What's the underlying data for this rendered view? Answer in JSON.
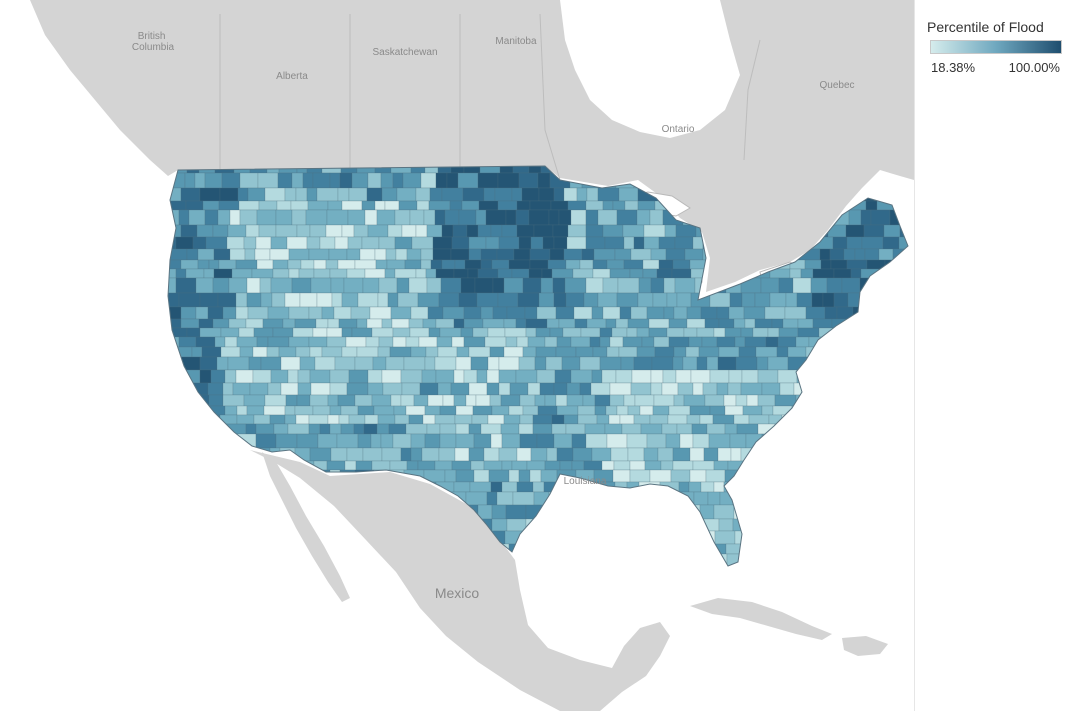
{
  "legend": {
    "title": "Percentile of Flood",
    "min_label": "18.38%",
    "max_label": "100.00%",
    "min_color": "#d5ecec",
    "max_color": "#1f4e6f"
  },
  "place_labels": [
    {
      "id": "british-columbia",
      "lines": [
        "British",
        "Columbia"
      ]
    },
    {
      "id": "alberta",
      "lines": [
        "Alberta"
      ]
    },
    {
      "id": "saskatchewan",
      "lines": [
        "Saskatchewan"
      ]
    },
    {
      "id": "manitoba",
      "lines": [
        "Manitoba"
      ]
    },
    {
      "id": "ontario",
      "lines": [
        "Ontario"
      ]
    },
    {
      "id": "quebec",
      "lines": [
        "Quebec"
      ]
    },
    {
      "id": "mexico",
      "lines": [
        "Mexico"
      ]
    },
    {
      "id": "louisiana",
      "lines": [
        "Louisiana"
      ]
    }
  ],
  "map_colors": {
    "water": "#ffffff",
    "land": "#d4d4d4",
    "county_border": "#4f6f7e"
  }
}
